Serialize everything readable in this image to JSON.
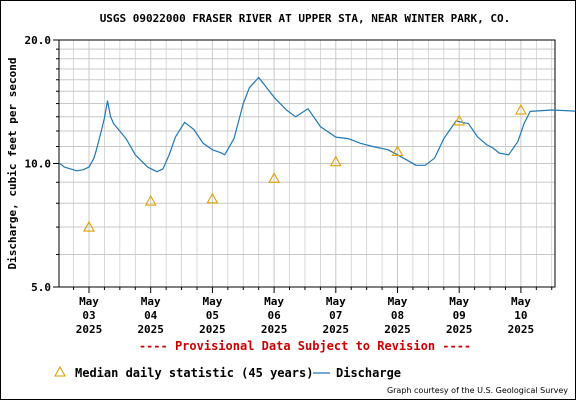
{
  "chart_data": {
    "type": "line",
    "title": "USGS 09022000 FRASER RIVER AT UPPER STA, NEAR WINTER PARK, CO.",
    "ylabel": "Discharge, cubic feet per second",
    "y_scale": "log",
    "ylim": [
      5.0,
      20.0
    ],
    "y_ticks": [
      "5.0",
      "10.0",
      "20.0"
    ],
    "x_ticks": [
      {
        "month": "May",
        "day": "03",
        "year": "2025"
      },
      {
        "month": "May",
        "day": "04",
        "year": "2025"
      },
      {
        "month": "May",
        "day": "05",
        "year": "2025"
      },
      {
        "month": "May",
        "day": "06",
        "year": "2025"
      },
      {
        "month": "May",
        "day": "07",
        "year": "2025"
      },
      {
        "month": "May",
        "day": "08",
        "year": "2025"
      },
      {
        "month": "May",
        "day": "09",
        "year": "2025"
      },
      {
        "month": "May",
        "day": "10",
        "year": "2025"
      }
    ],
    "grid": true,
    "legend_position": "bottom",
    "notice": "---- Provisional Data Subject to Revision ----",
    "credit": "Graph courtesy of the U.S. Geological Survey",
    "colors": {
      "discharge": "#1f78b4",
      "median": "#e0a000",
      "notice": "#cc0000",
      "grid": "#c8c8c8"
    },
    "series": [
      {
        "name": "Discharge",
        "style": "line",
        "x_days_from_may_03": [
          -0.47,
          -0.4,
          -0.3,
          -0.2,
          -0.1,
          0.0,
          0.08,
          0.12,
          0.2,
          0.25,
          0.3,
          0.35,
          0.4,
          0.6,
          0.75,
          0.95,
          1.1,
          1.2,
          1.3,
          1.4,
          1.55,
          1.7,
          1.85,
          2.0,
          2.15,
          2.2,
          2.35,
          2.5,
          2.6,
          2.75,
          3.0,
          3.2,
          3.35,
          3.55,
          3.75,
          4.0,
          4.2,
          4.4,
          4.6,
          4.85,
          5.0,
          5.2,
          5.3,
          5.45,
          5.6,
          5.75,
          5.95,
          6.15,
          6.3,
          6.45,
          6.55,
          6.65,
          6.8,
          6.95,
          7.05,
          7.15,
          7.5,
          7.98
        ],
        "values": [
          10.0,
          9.8,
          9.7,
          9.6,
          9.65,
          9.8,
          10.3,
          10.8,
          12.0,
          12.9,
          14.2,
          13.0,
          12.5,
          11.5,
          10.5,
          9.8,
          9.55,
          9.7,
          10.5,
          11.6,
          12.6,
          12.1,
          11.2,
          10.8,
          10.6,
          10.5,
          11.5,
          14.0,
          15.3,
          16.2,
          14.5,
          13.5,
          13.0,
          13.6,
          12.3,
          11.6,
          11.5,
          11.2,
          11.0,
          10.8,
          10.5,
          10.1,
          9.9,
          9.9,
          10.3,
          11.5,
          12.7,
          12.5,
          11.6,
          11.1,
          10.9,
          10.6,
          10.5,
          11.3,
          12.5,
          13.4,
          13.5,
          13.4
        ]
      },
      {
        "name": "Median daily statistic (45 years)",
        "style": "triangle",
        "x_days_from_may_03": [
          0.0,
          1.0,
          2.0,
          3.0,
          4.0,
          5.0,
          6.0,
          7.0
        ],
        "values": [
          7.0,
          8.1,
          8.2,
          9.2,
          10.1,
          10.7,
          12.7,
          13.5
        ]
      }
    ]
  }
}
